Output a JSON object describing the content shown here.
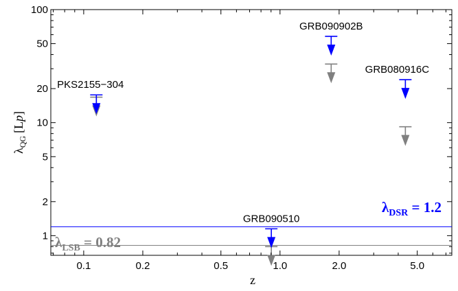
{
  "chart_data": {
    "type": "scatter",
    "title": "",
    "xlabel": "z",
    "ylabel": "λ",
    "ylabel_sub": "QG",
    "ylabel_unit": "[L",
    "ylabel_unit_sub": "p",
    "ylabel_unit_close": "]",
    "x_scale": "log",
    "y_scale": "log",
    "xlim": [
      0.068,
      7.5
    ],
    "ylim": [
      0.67,
      100
    ],
    "x_ticks": [
      {
        "v": 0.1,
        "label": "0.1"
      },
      {
        "v": 0.2,
        "label": "0.2"
      },
      {
        "v": 0.5,
        "label": "0.5"
      },
      {
        "v": 1.0,
        "label": "1.0"
      },
      {
        "v": 2.0,
        "label": "2.0"
      },
      {
        "v": 5.0,
        "label": "5.0"
      }
    ],
    "y_ticks": [
      {
        "v": 1,
        "label": "1"
      },
      {
        "v": 2,
        "label": "2"
      },
      {
        "v": 5,
        "label": "5"
      },
      {
        "v": 10,
        "label": "10"
      },
      {
        "v": 20,
        "label": "20"
      },
      {
        "v": 50,
        "label": "50"
      },
      {
        "v": 100,
        "label": "100"
      }
    ],
    "grid": false,
    "series": [
      {
        "color": "#0000ff",
        "marker": "upper-limit-arrow"
      },
      {
        "color": "#808080",
        "marker": "upper-limit-arrow"
      }
    ],
    "points": [
      {
        "source": "PKS2155−304",
        "z": 0.116,
        "blue": 17.6,
        "gray": 16.8
      },
      {
        "source": "GRB090510",
        "z": 0.903,
        "blue": 1.15,
        "gray": 0.8
      },
      {
        "source": "GRB090902B",
        "z": 1.822,
        "blue": 58,
        "gray": 33
      },
      {
        "source": "GRB080916C",
        "z": 4.35,
        "blue": 24,
        "gray": 9.2
      }
    ],
    "reference_lines": [
      {
        "prefix": "λ",
        "sub": "DSR",
        "text": " = 1.2",
        "value": 1.2,
        "color": "#0000ff"
      },
      {
        "prefix": "λ",
        "sub": "LSB",
        "text": " = 0.82",
        "value": 0.82,
        "color": "#808080"
      }
    ]
  }
}
